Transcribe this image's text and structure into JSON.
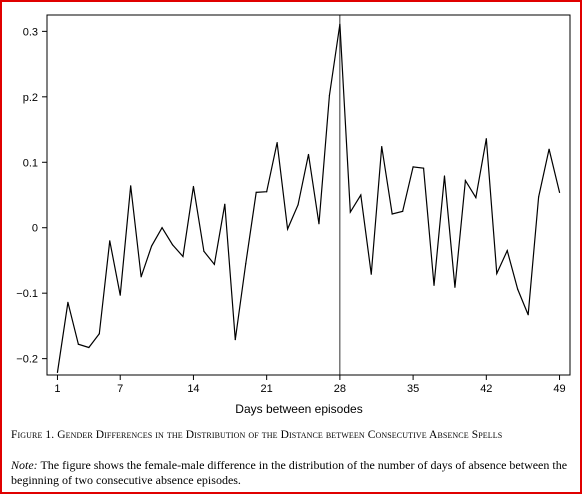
{
  "chart_data": {
    "type": "line",
    "xlabel": "Days between episodes",
    "ylabel": "",
    "x_ticks": [
      1,
      7,
      14,
      21,
      28,
      35,
      42,
      49
    ],
    "y_ticks": [
      -0.2,
      -0.1,
      0,
      0.1,
      0.2,
      0.3
    ],
    "y_tick_labels": [
      "−0.2",
      "−0.1",
      "0",
      "0.1",
      "p.2",
      "0.3"
    ],
    "xlim": [
      0,
      50
    ],
    "ylim": [
      -0.225,
      0.325
    ],
    "vline_x": 28,
    "grid": false,
    "line_color": "#000000",
    "series": [
      {
        "x": [
          1,
          2,
          3,
          4,
          5,
          6,
          7,
          8,
          9,
          10,
          11,
          12,
          13,
          14,
          15,
          16,
          17,
          18,
          19,
          20,
          21,
          22,
          23,
          24,
          25,
          26,
          27,
          28,
          29,
          30,
          31,
          32,
          33,
          34,
          35,
          36,
          37,
          38,
          39,
          40,
          41,
          42,
          43,
          44,
          45,
          46,
          47,
          48,
          49
        ],
        "values": [
          -0.221,
          -0.114,
          -0.178,
          -0.183,
          -0.162,
          -0.02,
          -0.103,
          0.064,
          -0.075,
          -0.028,
          0.0,
          -0.026,
          -0.044,
          0.063,
          -0.036,
          -0.056,
          0.036,
          -0.171,
          -0.055,
          0.054,
          0.055,
          0.13,
          -0.002,
          0.035,
          0.112,
          0.006,
          0.202,
          0.311,
          0.024,
          0.05,
          -0.071,
          0.124,
          0.021,
          0.025,
          0.093,
          0.091,
          -0.088,
          0.079,
          -0.091,
          0.072,
          0.046,
          0.136,
          -0.07,
          -0.035,
          -0.094,
          -0.133,
          0.047,
          0.12,
          0.054
        ]
      }
    ]
  },
  "caption": {
    "title": "Figure 1. Gender Differences in the Distribution of the Distance between Consecutive Absence Spells",
    "note_label": "Note:",
    "note_text": " The figure shows the female-male difference in the distribution of the number of days of absence between the beginning of two consecutive absence episodes."
  },
  "colors": {
    "border": "#e00000",
    "line": "#000000"
  }
}
